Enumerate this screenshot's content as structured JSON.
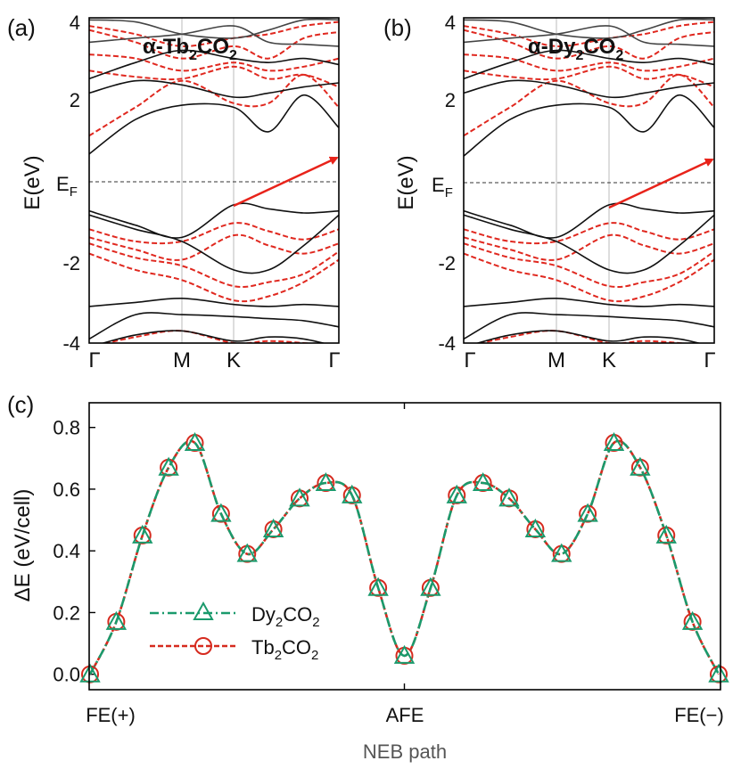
{
  "chart_data": [
    {
      "type": "line",
      "panel_label": "(a)",
      "title": {
        "prefix": "α-Tb",
        "sub1": "2",
        "mid": "CO",
        "sub2": "2"
      },
      "ylabel": "E(eV)",
      "ylim": [
        -4,
        4
      ],
      "y_ticks": [
        "4",
        "2",
        "-2",
        "-4"
      ],
      "ef_label": {
        "main": "E",
        "sub": "F"
      },
      "k_labels": [
        "Γ",
        "M",
        "K",
        "Γ"
      ],
      "arrow": {
        "from": [
          "K",
          -0.6
        ],
        "to": [
          "Γ",
          0.6
        ]
      },
      "bands_black": [
        [
          3.95,
          3.9,
          3.6,
          3.5,
          3.7,
          3.95,
          3.95
        ],
        [
          3.4,
          3.5,
          3.6,
          3.8,
          3.4,
          3.35,
          3.3
        ],
        [
          2.5,
          2.9,
          3.2,
          3.0,
          2.9,
          3.0,
          2.85
        ],
        [
          2.15,
          2.45,
          2.35,
          2.05,
          2.15,
          2.3,
          2.4
        ],
        [
          0.65,
          1.5,
          1.85,
          1.8,
          1.2,
          2.1,
          1.3
        ],
        [
          -0.75,
          -1.1,
          -1.4,
          -0.6,
          -0.7,
          -0.8,
          -0.75
        ],
        [
          -0.85,
          -1.2,
          -1.5,
          -2.2,
          -2.2,
          -1.6,
          -0.85
        ],
        [
          -3.1,
          -3.0,
          -2.9,
          -3.05,
          -3.1,
          -3.05,
          -3.1
        ],
        [
          -3.9,
          -3.3,
          -3.3,
          -3.35,
          -3.4,
          -3.45,
          -3.6
        ],
        [
          -4.1,
          -3.8,
          -3.7,
          -3.95,
          -3.85,
          -3.9,
          -4.1
        ]
      ],
      "bands_red": [
        [
          3.8,
          3.6,
          3.3,
          3.5,
          3.6,
          3.8,
          3.9
        ],
        [
          3.7,
          3.4,
          3.0,
          3.3,
          3.0,
          3.5,
          3.65
        ],
        [
          3.1,
          3.0,
          2.7,
          2.9,
          2.7,
          2.8,
          3.0
        ],
        [
          2.7,
          2.55,
          2.5,
          2.8,
          2.5,
          2.6,
          2.3
        ],
        [
          1.1,
          1.8,
          2.45,
          1.9,
          1.9,
          2.6,
          1.8
        ],
        [
          -1.2,
          -1.5,
          -1.5,
          -1.05,
          -1.25,
          -1.45,
          -1.2
        ],
        [
          -1.4,
          -1.7,
          -1.95,
          -1.35,
          -1.6,
          -1.8,
          -1.55
        ],
        [
          -1.55,
          -1.9,
          -2.1,
          -2.6,
          -2.5,
          -2.3,
          -1.75
        ],
        [
          -1.8,
          -2.2,
          -2.45,
          -2.95,
          -2.85,
          -2.5,
          -1.95
        ],
        [
          -4.1,
          -3.85,
          -3.7,
          -4.0,
          -3.95,
          -4.0,
          -4.1
        ]
      ]
    },
    {
      "type": "line",
      "panel_label": "(b)",
      "title": {
        "prefix": "α-Dy",
        "sub1": "2",
        "mid": "CO",
        "sub2": "2"
      },
      "ylabel": "E(eV)",
      "ylim": [
        -4,
        4
      ],
      "y_ticks": [
        "4",
        "2",
        "-2",
        "-4"
      ],
      "ef_label": {
        "main": "E",
        "sub": "F"
      },
      "k_labels": [
        "Γ",
        "M",
        "K",
        "Γ"
      ],
      "arrow": {
        "from": [
          "K",
          -0.6
        ],
        "to": [
          "Γ",
          0.6
        ]
      },
      "bands_black": [
        [
          3.95,
          3.9,
          3.6,
          3.5,
          3.7,
          3.95,
          3.95
        ],
        [
          3.4,
          3.5,
          3.6,
          3.8,
          3.4,
          3.35,
          3.3
        ],
        [
          2.5,
          2.9,
          3.2,
          3.0,
          2.9,
          3.0,
          2.85
        ],
        [
          2.15,
          2.45,
          2.35,
          2.05,
          2.15,
          2.3,
          2.4
        ],
        [
          0.6,
          1.5,
          1.85,
          1.8,
          1.2,
          2.1,
          1.3
        ],
        [
          -0.75,
          -1.1,
          -1.4,
          -0.6,
          -0.7,
          -0.8,
          -0.75
        ],
        [
          -0.85,
          -1.2,
          -1.5,
          -2.2,
          -2.2,
          -1.6,
          -0.85
        ],
        [
          -3.1,
          -3.0,
          -2.9,
          -3.05,
          -3.1,
          -3.05,
          -3.1
        ],
        [
          -3.9,
          -3.3,
          -3.3,
          -3.35,
          -3.4,
          -3.45,
          -3.6
        ],
        [
          -4.1,
          -3.8,
          -3.7,
          -3.95,
          -3.85,
          -3.9,
          -4.1
        ]
      ],
      "bands_red": [
        [
          3.8,
          3.6,
          3.3,
          3.5,
          3.6,
          3.8,
          3.9
        ],
        [
          3.7,
          3.4,
          3.0,
          3.3,
          3.0,
          3.5,
          3.65
        ],
        [
          3.1,
          3.0,
          2.7,
          2.9,
          2.7,
          2.8,
          3.0
        ],
        [
          2.7,
          2.55,
          2.5,
          2.8,
          2.5,
          2.6,
          2.3
        ],
        [
          1.1,
          1.8,
          2.45,
          1.9,
          1.9,
          2.6,
          1.8
        ],
        [
          -1.2,
          -1.5,
          -1.5,
          -1.05,
          -1.25,
          -1.45,
          -1.2
        ],
        [
          -1.4,
          -1.7,
          -1.95,
          -1.35,
          -1.6,
          -1.8,
          -1.55
        ],
        [
          -1.55,
          -1.9,
          -2.1,
          -2.6,
          -2.5,
          -2.3,
          -1.75
        ],
        [
          -1.8,
          -2.2,
          -2.45,
          -2.95,
          -2.85,
          -2.5,
          -1.95
        ],
        [
          -4.1,
          -3.85,
          -3.7,
          -4.0,
          -3.95,
          -4.0,
          -4.1
        ]
      ]
    },
    {
      "type": "line",
      "panel_label": "(c)",
      "ylabel": "ΔE  (eV/cell)",
      "xlabel": "NEB path",
      "ylim": [
        -0.05,
        0.88
      ],
      "y_ticks": [
        0.0,
        0.2,
        0.4,
        0.6,
        0.8
      ],
      "y_tick_labels": [
        "0.0",
        "0.2",
        "0.4",
        "0.6",
        "0.8"
      ],
      "x_ticks": [
        "FE(+)",
        "AFE",
        "FE(−)"
      ],
      "x": [
        0,
        1,
        2,
        3,
        4,
        5,
        6,
        7,
        8,
        9,
        10,
        11,
        12,
        13,
        14,
        15,
        16,
        17,
        18,
        19,
        20,
        21,
        22,
        23,
        24
      ],
      "series": [
        {
          "name": "Dy2CO2",
          "legend": {
            "main": "Dy",
            "sub": "2",
            "mid": "CO",
            "sub2": "2"
          },
          "color": "#1a9a6c",
          "marker": "triangle",
          "values": [
            0.0,
            0.17,
            0.45,
            0.67,
            0.75,
            0.52,
            0.39,
            0.47,
            0.57,
            0.62,
            0.58,
            0.28,
            0.06,
            0.28,
            0.58,
            0.62,
            0.57,
            0.47,
            0.39,
            0.52,
            0.75,
            0.67,
            0.45,
            0.17,
            0.0
          ]
        },
        {
          "name": "Tb2CO2",
          "legend": {
            "main": "Tb",
            "sub": "2",
            "mid": "CO",
            "sub2": "2"
          },
          "color": "#d62a1e",
          "marker": "circle",
          "values": [
            0.0,
            0.17,
            0.45,
            0.67,
            0.75,
            0.52,
            0.39,
            0.47,
            0.57,
            0.62,
            0.58,
            0.28,
            0.06,
            0.28,
            0.58,
            0.62,
            0.57,
            0.47,
            0.39,
            0.52,
            0.75,
            0.67,
            0.45,
            0.17,
            0.0
          ]
        }
      ]
    }
  ]
}
